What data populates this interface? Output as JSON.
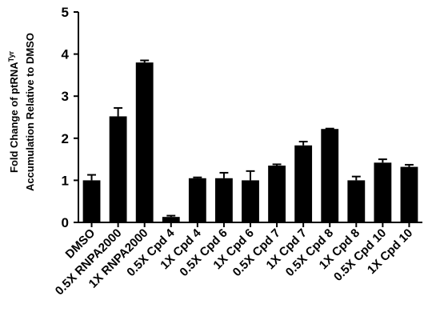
{
  "chart_data": {
    "type": "bar",
    "y_label": {
      "line1": "Fold Change of ptRNA",
      "superscript": "Tyr",
      "line2": "Accumulation Relative to DMSO"
    },
    "categories": [
      "DMSO",
      "0.5X RNPA2000",
      "1X RNPA2000",
      "0.5X Cpd 4",
      "1X Cpd 4",
      "0.5X Cpd 6",
      "1X Cpd 6",
      "0.5X Cpd 7",
      "1X Cpd 7",
      "0.5X Cpd 8",
      "1X Cpd 8",
      "0.5X Cpd 10",
      "1X Cpd 10"
    ],
    "values": [
      1.0,
      2.52,
      3.8,
      0.13,
      1.05,
      1.05,
      1.0,
      1.35,
      1.83,
      2.22,
      1.0,
      1.42,
      1.32
    ],
    "errors": [
      0.13,
      0.2,
      0.05,
      0.03,
      0.02,
      0.13,
      0.22,
      0.03,
      0.09,
      0.01,
      0.09,
      0.08,
      0.05
    ],
    "color": "#000000",
    "ylim": [
      0,
      5
    ],
    "yticks": [
      0,
      1,
      2,
      3,
      4,
      5
    ],
    "grid": false
  }
}
